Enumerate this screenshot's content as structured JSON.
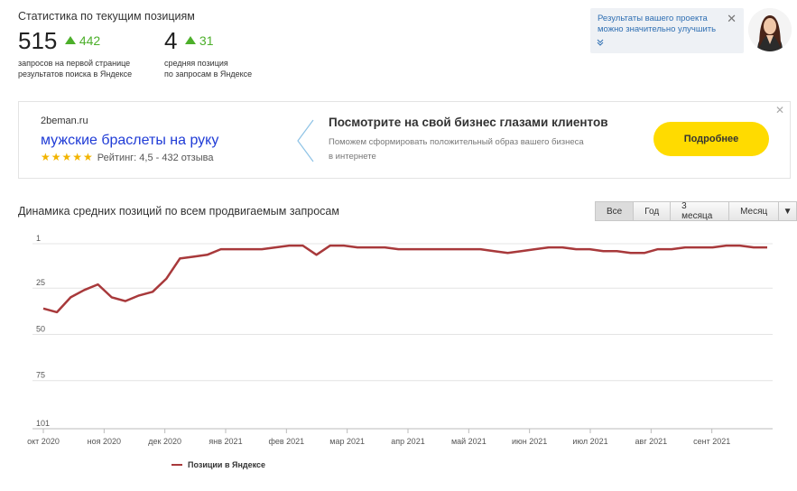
{
  "stats": {
    "title": "Статистика по текущим позициям",
    "items": [
      {
        "value": "515",
        "delta": "442",
        "desc": "запросов на первой странице\nрезультатов поиска в Яндексе"
      },
      {
        "value": "4",
        "delta": "31",
        "desc": "средняя позиция\nпо запросам в Яндексе"
      }
    ]
  },
  "notification": {
    "text": "Результаты вашего проекта\nможно значительно улучшить",
    "close_icon": "close-icon",
    "expand_icon": "chevron-down-icon"
  },
  "ad": {
    "domain": "2beman.ru",
    "title": "мужские браслеты на руку",
    "stars": "★★★★★",
    "rating_text": "Рейтинг: 4,5 - 432 отзыва",
    "headline": "Посмотрите на свой бизнес глазами клиентов",
    "subtext": "Поможем сформировать положительный образ вашего бизнеса\nв интернете",
    "button_label": "Подробнее",
    "close_label": "✕"
  },
  "chart_section": {
    "title": "Динамика средних позиций по всем продвигаемым запросам",
    "ranges": [
      "Все",
      "Год",
      "3 месяца",
      "Месяц"
    ],
    "active_range": "Все",
    "menu_icon": "▼"
  },
  "colors": {
    "line": "#a8393b",
    "accent_green": "#4caf2a",
    "cta_yellow": "#ffdb00",
    "link_blue": "#1f3bd6"
  },
  "chart_data": {
    "type": "line",
    "ylim": [
      101,
      1
    ],
    "y_ticks": [
      1,
      25,
      50,
      75,
      101
    ],
    "x_tick_labels": [
      "окт 2020",
      "ноя 2020",
      "дек 2020",
      "янв 2021",
      "фев 2021",
      "мар 2021",
      "апр 2021",
      "май 2021",
      "июн 2021",
      "июл 2021",
      "авг 2021",
      "сент 2021"
    ],
    "series": [
      {
        "name": "Позиции в Яндексе",
        "values": [
          36,
          38,
          30,
          26,
          23,
          30,
          32,
          29,
          27,
          20,
          9,
          8,
          7,
          4,
          4,
          4,
          4,
          3,
          2,
          2,
          7,
          2,
          2,
          3,
          3,
          3,
          4,
          4,
          4,
          4,
          4,
          4,
          4,
          5,
          6,
          5,
          4,
          3,
          3,
          4,
          4,
          5,
          5,
          6,
          6,
          4,
          4,
          3,
          3,
          3,
          2,
          2,
          3,
          3
        ]
      }
    ],
    "grid": true,
    "legend_position": "bottom-left"
  }
}
